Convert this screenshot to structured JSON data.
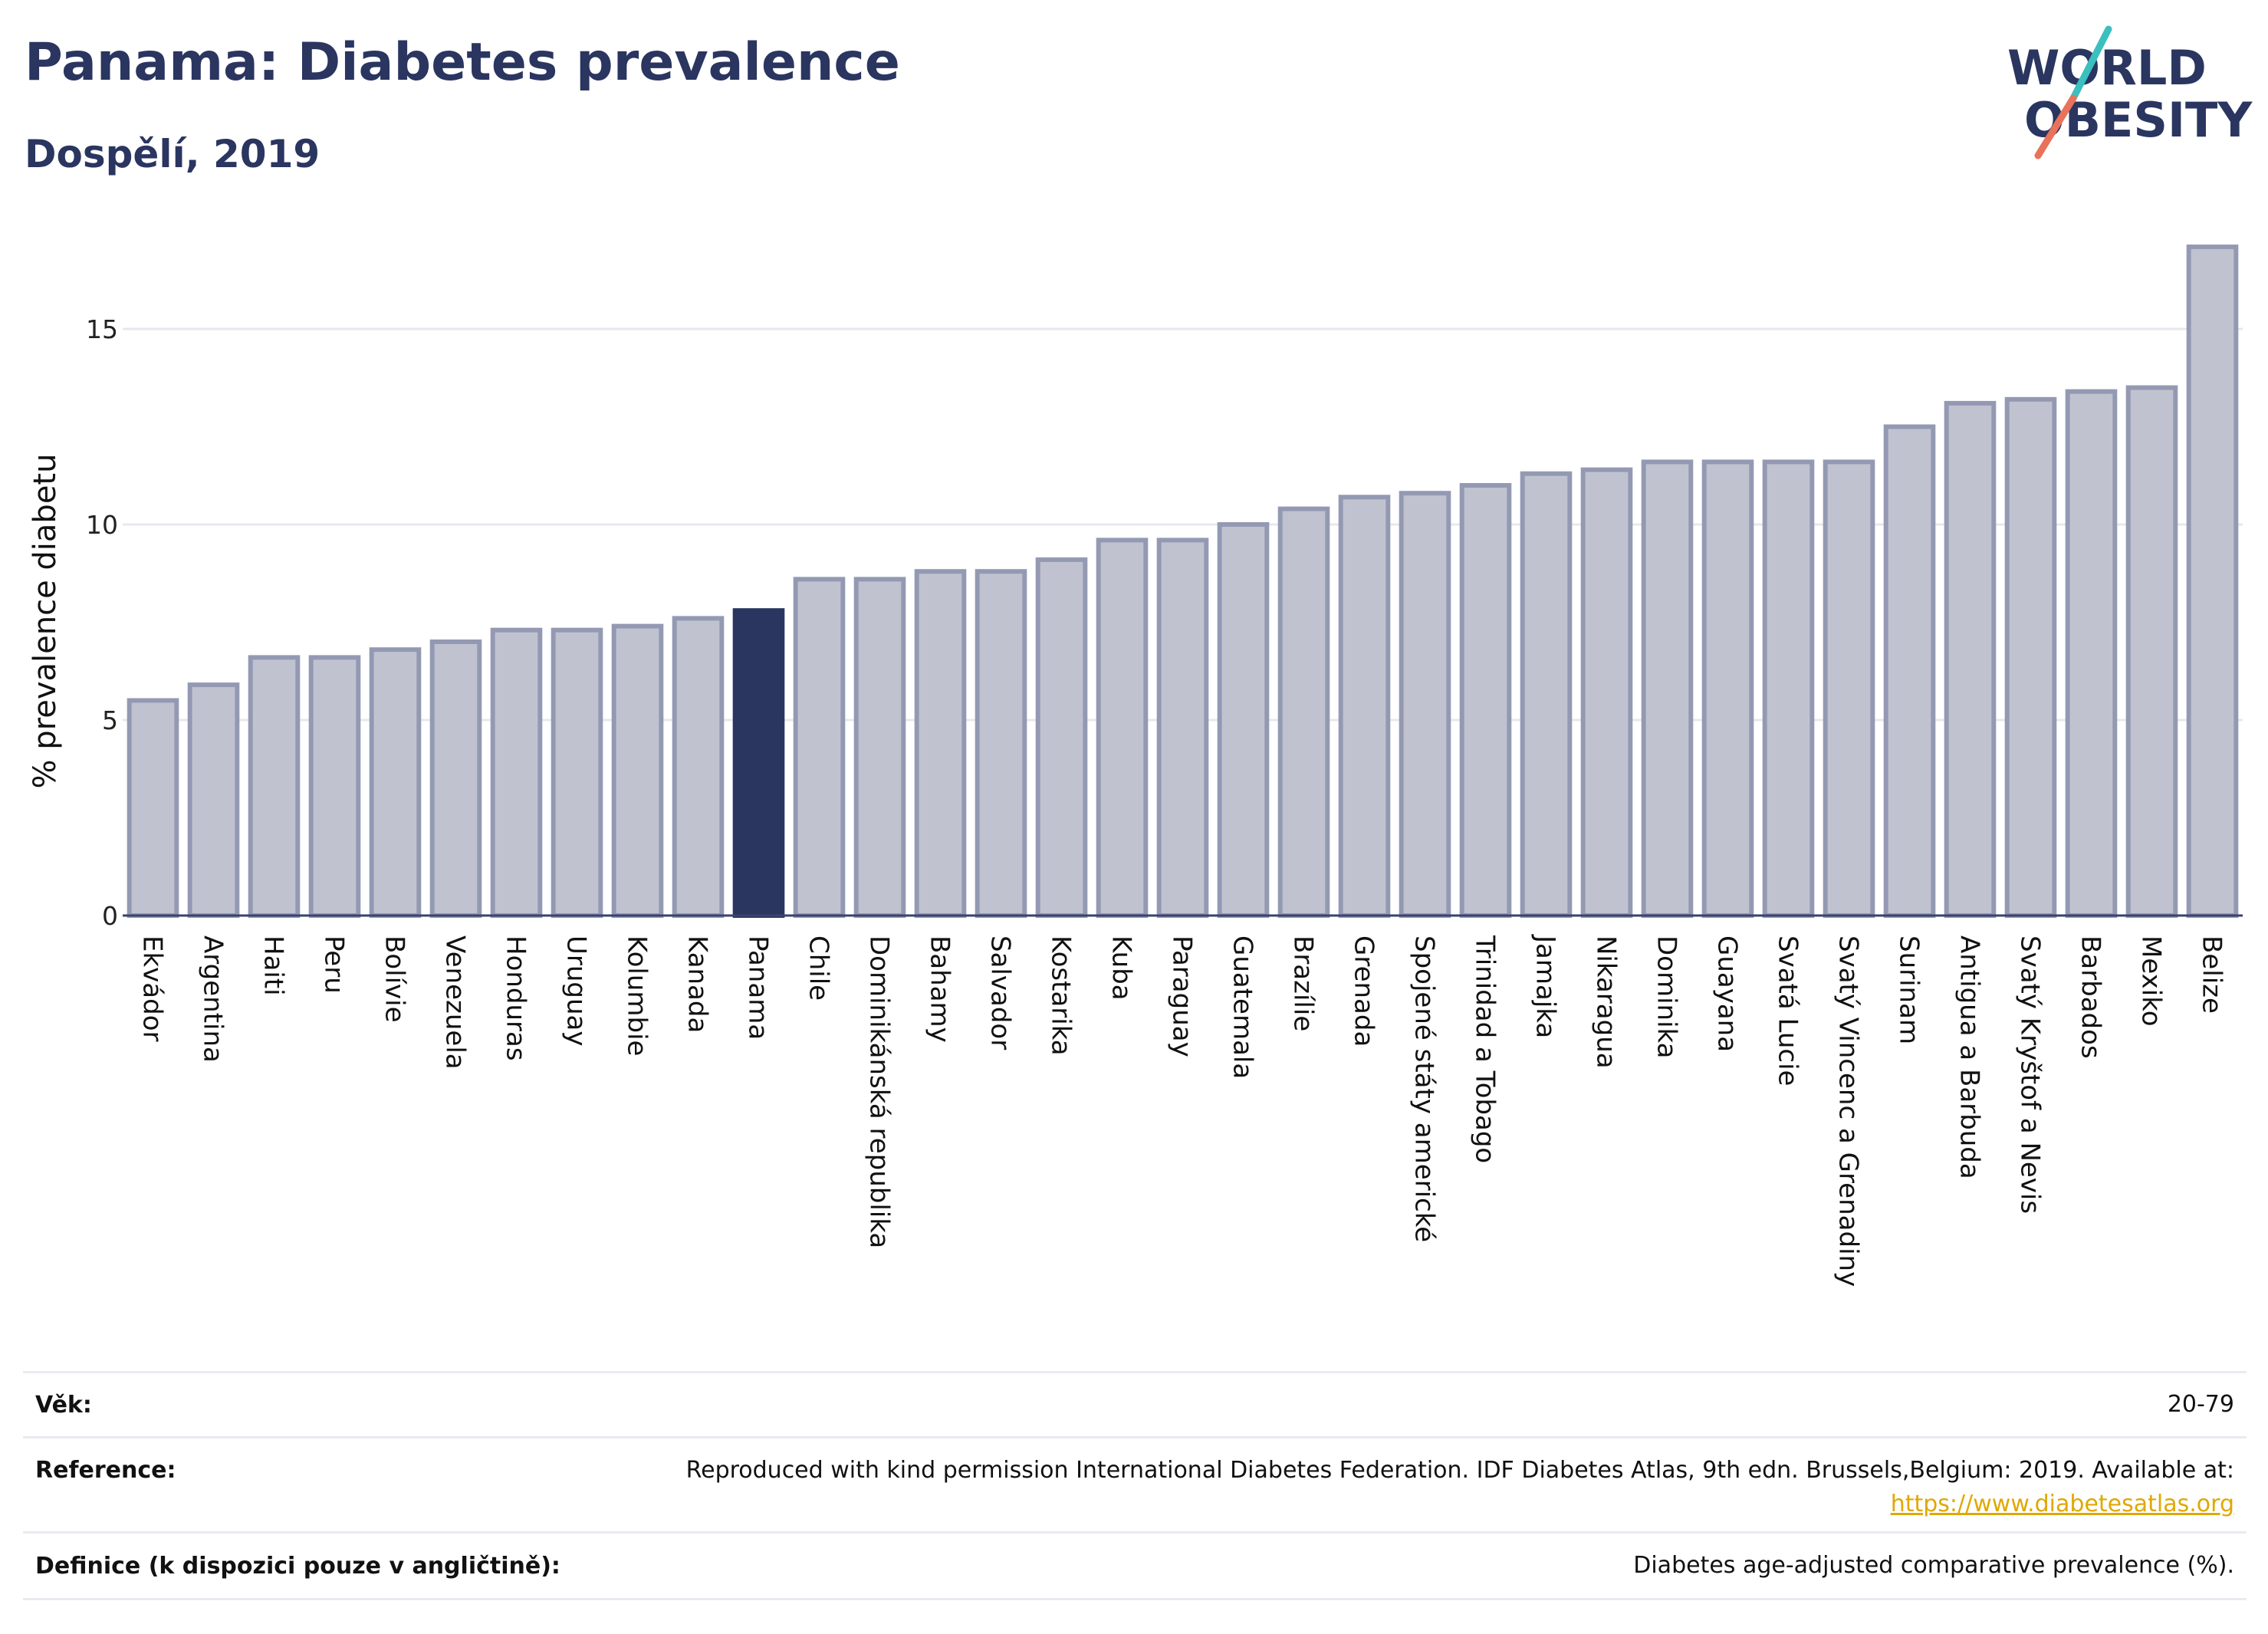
{
  "header": {
    "title": "Panama: Diabetes prevalence",
    "subtitle": "Dospělí, 2019"
  },
  "logo": {
    "line1": "WORLD",
    "line2": "OBESITY",
    "colors": {
      "text": "#2a3560",
      "slash_top": "#3bbfbf",
      "slash_bottom": "#e8735a"
    }
  },
  "chart_data": {
    "type": "bar",
    "ylabel": "% prevalence diabetu",
    "xlabel": "",
    "ylim": [
      0,
      17.5
    ],
    "yticks": [
      0,
      5,
      10,
      15
    ],
    "grid": true,
    "highlight": "Panama",
    "colors": {
      "bar": "#c0c3cf",
      "bar_border": "#9499b3",
      "highlight": "#2a3560"
    },
    "categories": [
      "Ekvádor",
      "Argentina",
      "Haiti",
      "Peru",
      "Bolívie",
      "Venezuela",
      "Honduras",
      "Uruguay",
      "Kolumbie",
      "Kanada",
      "Panama",
      "Chile",
      "Dominikánská republika",
      "Bahamy",
      "Salvador",
      "Kostarika",
      "Kuba",
      "Paraguay",
      "Guatemala",
      "Brazílie",
      "Grenada",
      "Spojené státy americké",
      "Trinidad a Tobago",
      "Jamajka",
      "Nikaragua",
      "Dominika",
      "Guayana",
      "Svatá Lucie",
      "Svatý Vincenc a Grenadiny",
      "Surinam",
      "Antigua a Barbuda",
      "Svatý Kryštof a Nevis",
      "Barbados",
      "Mexiko",
      "Belize"
    ],
    "values": [
      5.5,
      5.9,
      6.6,
      6.6,
      6.8,
      7.0,
      7.3,
      7.3,
      7.4,
      7.6,
      7.8,
      8.6,
      8.6,
      8.8,
      8.8,
      9.1,
      9.6,
      9.6,
      10.0,
      10.4,
      10.7,
      10.8,
      11.0,
      11.3,
      11.4,
      11.6,
      11.6,
      11.6,
      11.6,
      12.5,
      13.1,
      13.2,
      13.4,
      13.5,
      17.1
    ]
  },
  "info": {
    "age_label": "Věk:",
    "age_value": "20-79",
    "reference_label": "Reference:",
    "reference_text": "Reproduced with kind permission International Diabetes Federation. IDF Diabetes Atlas, 9th edn. Brussels,Belgium: 2019. Available at:",
    "reference_link": "https://www.diabetesatlas.org",
    "definition_label": "Definice (k dispozici pouze v angličtině):",
    "definition_value": "Diabetes age-adjusted comparative prevalence (%)."
  }
}
